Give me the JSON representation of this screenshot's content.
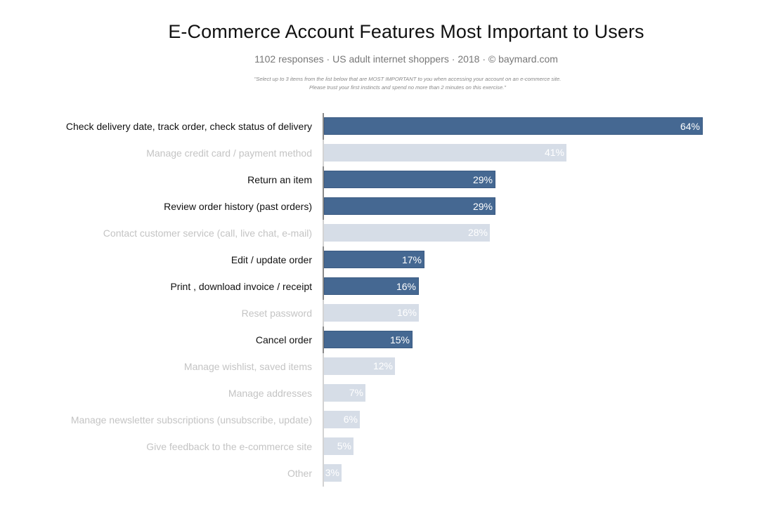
{
  "header": {
    "title": "E-Commerce Account Features Most Important to Users",
    "subtitle": "1102 responses  ·  US adult internet shoppers ·  2018  ·  ©  baymard.com",
    "question": "\"Select up to 3 items from the list below that are MOST IMPORTANT to you when accessing your account on an e-commerce site. Please trust your first instincts and spend no more than 2 minutes on this exercise.\""
  },
  "colors": {
    "highlight_bar": "#456892",
    "muted_bar": "#d6dde7",
    "highlight_label": "#111111",
    "muted_label": "#c4c4c4",
    "value_text": "#ffffff"
  },
  "rows": [
    {
      "label": "Check delivery date, track order, check status of delivery",
      "value": 64,
      "value_label": "64%",
      "style": "dark"
    },
    {
      "label": "Manage credit card / payment method",
      "value": 41,
      "value_label": "41%",
      "style": "light"
    },
    {
      "label": "Return an item",
      "value": 29,
      "value_label": "29%",
      "style": "dark"
    },
    {
      "label": "Review order history (past orders)",
      "value": 29,
      "value_label": "29%",
      "style": "dark"
    },
    {
      "label": "Contact customer service (call, live chat, e-mail)",
      "value": 28,
      "value_label": "28%",
      "style": "light"
    },
    {
      "label": "Edit / update order",
      "value": 17,
      "value_label": "17%",
      "style": "dark"
    },
    {
      "label": "Print , download invoice / receipt",
      "value": 16,
      "value_label": "16%",
      "style": "dark"
    },
    {
      "label": "Reset password",
      "value": 16,
      "value_label": "16%",
      "style": "light"
    },
    {
      "label": "Cancel order",
      "value": 15,
      "value_label": "15%",
      "style": "dark"
    },
    {
      "label": "Manage wishlist, saved items",
      "value": 12,
      "value_label": "12%",
      "style": "light"
    },
    {
      "label": "Manage addresses",
      "value": 7,
      "value_label": "7%",
      "style": "light"
    },
    {
      "label": "Manage newsletter subscriptions (unsubscribe, update)",
      "value": 6,
      "value_label": "6%",
      "style": "light"
    },
    {
      "label": "Give feedback to the e-commerce site",
      "value": 5,
      "value_label": "5%",
      "style": "light"
    },
    {
      "label": "Other",
      "value": 3,
      "value_label": "3%",
      "style": "light"
    }
  ],
  "chart_data": {
    "type": "bar",
    "orientation": "horizontal",
    "title": "E-Commerce Account Features Most Important to Users",
    "subtitle": "1102 responses · US adult internet shoppers · 2018 · © baymard.com",
    "annotation": "\"Select up to 3 items from the list below that are MOST IMPORTANT to you when accessing your account on an e-commerce site. Please trust your first instincts and spend no more than 2 minutes on this exercise.\"",
    "categories": [
      "Check delivery date, track order, check status of delivery",
      "Manage credit card / payment method",
      "Return an item",
      "Review order history (past orders)",
      "Contact customer service (call, live chat, e-mail)",
      "Edit / update order",
      "Print , download invoice / receipt",
      "Reset password",
      "Cancel order",
      "Manage wishlist, saved items",
      "Manage addresses",
      "Manage newsletter subscriptions (unsubscribe, update)",
      "Give feedback to the e-commerce site",
      "Other"
    ],
    "values": [
      64,
      41,
      29,
      29,
      28,
      17,
      16,
      16,
      15,
      12,
      7,
      6,
      5,
      3
    ],
    "unit": "%",
    "highlighted": [
      true,
      false,
      true,
      true,
      false,
      true,
      true,
      false,
      true,
      false,
      false,
      false,
      false,
      false
    ],
    "xlabel": "",
    "ylabel": "",
    "xlim": [
      0,
      64
    ],
    "grid": false,
    "legend": null,
    "data_labels": "inside-end"
  }
}
